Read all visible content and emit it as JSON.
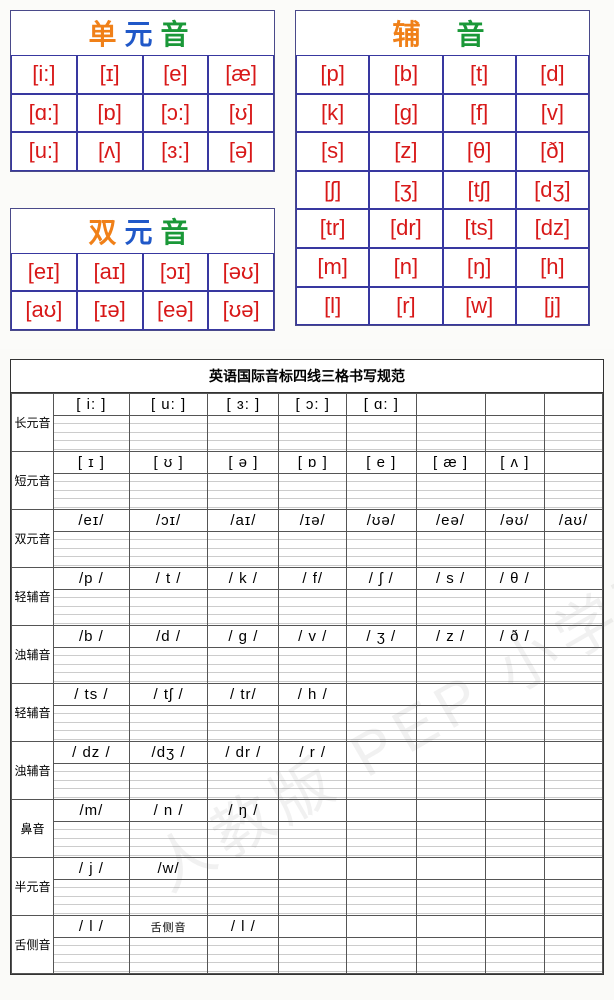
{
  "colors": {
    "title_orange": "#f08018",
    "title_blue": "#2058c8",
    "title_green": "#1a9838",
    "cell_text": "#d81818",
    "cell_border": "#3838a0",
    "box_border": "#4a4a8a",
    "ws_border": "#555555",
    "ws_line": "#999999",
    "bg": "#fafaf8"
  },
  "top": {
    "monophthongs": {
      "title_chars": [
        "单",
        "元",
        "音"
      ],
      "title_colors": [
        "#f08018",
        "#2058c8",
        "#1a9838"
      ],
      "rows": [
        [
          "[i:]",
          "[ɪ]",
          "[e]",
          "[æ]"
        ],
        [
          "[ɑ:]",
          "[ɒ]",
          "[ɔ:]",
          "[ʊ]"
        ],
        [
          "[u:]",
          "[ʌ]",
          "[ɜ:]",
          "[ə]"
        ]
      ]
    },
    "diphthongs": {
      "title_chars": [
        "双",
        "元",
        "音"
      ],
      "title_colors": [
        "#f08018",
        "#2058c8",
        "#1a9838"
      ],
      "rows": [
        [
          "[eɪ]",
          "[aɪ]",
          "[ɔɪ]",
          "[əʊ]"
        ],
        [
          "[aʊ]",
          "[ɪə]",
          "[eə]",
          "[ʊə]"
        ]
      ]
    },
    "consonants": {
      "title_chars": [
        "辅",
        "",
        "音"
      ],
      "title_colors": [
        "#f08018",
        "#000000",
        "#1a9838"
      ],
      "rows": [
        [
          "[p]",
          "[b]",
          "[t]",
          "[d]"
        ],
        [
          "[k]",
          "[g]",
          "[f]",
          "[v]"
        ],
        [
          "[s]",
          "[z]",
          "[θ]",
          "[ð]"
        ],
        [
          "[ʃ]",
          "[ʒ]",
          "[tʃ]",
          "[dʒ]"
        ],
        [
          "[tr]",
          "[dr]",
          "[ts]",
          "[dz]"
        ],
        [
          "[m]",
          "[n]",
          "[ŋ]",
          "[h]"
        ],
        [
          "[l]",
          "[r]",
          "[w]",
          "[j]"
        ]
      ]
    }
  },
  "worksheet": {
    "title": "英语国际音标四线三格书写规范",
    "cols": 8,
    "cell_font_size": 15,
    "label_font_size": 12,
    "rows": [
      {
        "label": "长元音",
        "cells": [
          "[ i: ]",
          "[ u: ]",
          "[ ɜ: ]",
          "[ ɔ: ]",
          "[ ɑ: ]",
          "",
          "",
          ""
        ]
      },
      {
        "label": "短元音",
        "cells": [
          "[ ɪ  ]",
          "[ ʊ  ]",
          "[ ə  ]",
          "[ ɒ  ]",
          "[ e ]",
          "[  æ  ]",
          "[ ʌ ]",
          ""
        ]
      },
      {
        "label": "双元音",
        "cells": [
          "/eɪ/",
          "/ɔɪ/",
          "/aɪ/",
          "/ɪə/",
          "/ʊə/",
          "/eə/",
          "/əʊ/",
          "/aʊ/"
        ]
      },
      {
        "label": "轻辅音",
        "cells": [
          "/p /",
          "/ t /",
          "/ k /",
          "/ f/",
          "/ ʃ /",
          "/ s /",
          "/ θ /",
          ""
        ]
      },
      {
        "label": "浊辅音",
        "cells": [
          "/b /",
          "/d /",
          "/ g /",
          "/ v /",
          "/ ʒ /",
          "/ z /",
          "/ ð /",
          ""
        ]
      },
      {
        "label": "轻辅音",
        "cells": [
          "/ ts /",
          "/ tʃ /",
          "/ tr/",
          "/ h /",
          "",
          "",
          "",
          ""
        ]
      },
      {
        "label": "浊辅音",
        "cells": [
          "/ dz /",
          "/dʒ /",
          "/ dr /",
          "/ r /",
          "",
          "",
          "",
          ""
        ]
      },
      {
        "label": "鼻音",
        "cells": [
          "/m/",
          "/ n /",
          "/ ŋ /",
          "",
          "",
          "",
          "",
          ""
        ]
      },
      {
        "label": "半元音",
        "cells": [
          "/ j /",
          "/w/",
          "",
          "",
          "",
          "",
          "",
          ""
        ]
      },
      {
        "label": "舌侧音",
        "cells": [
          "/ l /",
          "",
          "/ l /",
          "",
          "",
          "",
          "",
          ""
        ],
        "sublabel_at": 1,
        "sublabel": "舌侧音"
      }
    ]
  },
  "watermark": "人教版 PEP 小学英语"
}
